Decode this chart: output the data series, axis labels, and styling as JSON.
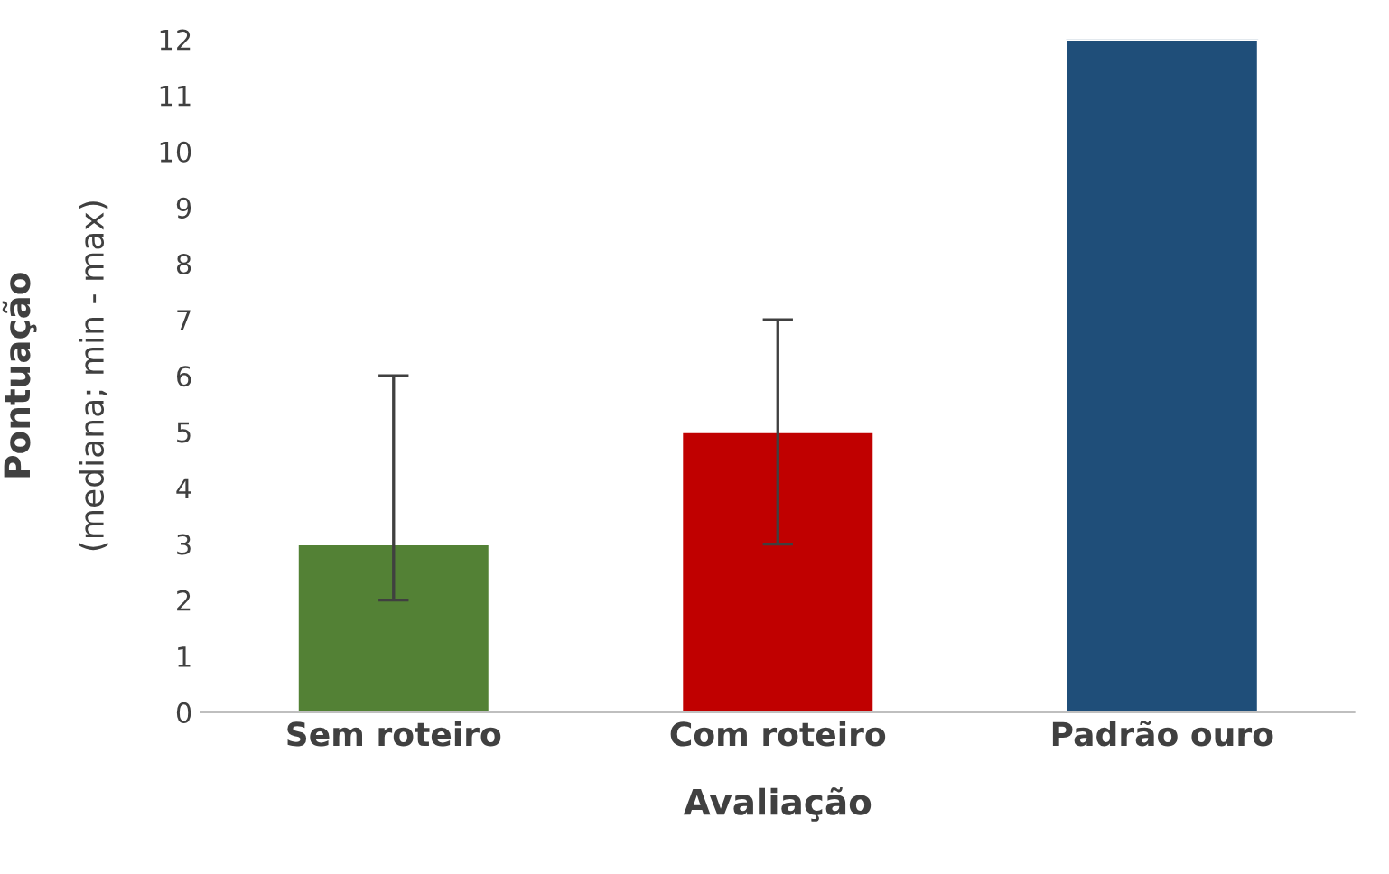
{
  "chart_data": {
    "type": "bar",
    "xlabel": "Avaliação",
    "ylabel": "Pontuação\n(mediana; min - max)",
    "categories": [
      "Sem roteiro",
      "Com roteiro",
      "Padrão ouro"
    ],
    "values": [
      3,
      5,
      12
    ],
    "colors": [
      "#538135",
      "#c00000",
      "#1f4e79"
    ],
    "errors": [
      [
        2,
        6
      ],
      [
        3,
        7
      ],
      null
    ],
    "ylim": [
      0,
      12
    ],
    "yticks": [
      0,
      1,
      2,
      3,
      4,
      5,
      6,
      7,
      8,
      9,
      10,
      11,
      12
    ],
    "grid": false,
    "legend": false
  }
}
